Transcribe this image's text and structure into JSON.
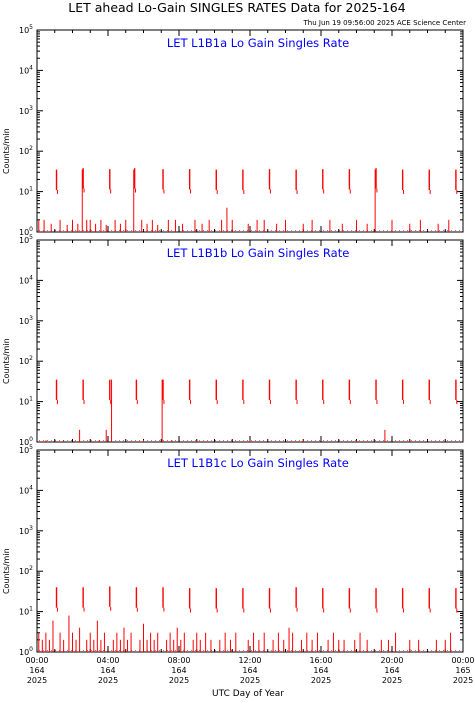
{
  "page": {
    "title": "LET ahead Lo-Gain SINGLES RATES Data for 2025-164",
    "timestamp": "Thu Jun 19 09:56:00 2025 ACE Science Center",
    "xlabel": "UTC Day of Year"
  },
  "colors": {
    "data": "#ff0000",
    "panel_title": "#0000ff",
    "axes": "#000000"
  },
  "x_ticks": [
    {
      "line1": "00:00",
      "line2": "164",
      "line3": "2025",
      "hour": 0
    },
    {
      "line1": "04:00",
      "line2": "164",
      "line3": "2025",
      "hour": 4
    },
    {
      "line1": "08:00",
      "line2": "164",
      "line3": "2025",
      "hour": 8
    },
    {
      "line1": "12:00",
      "line2": "164",
      "line3": "2025",
      "hour": 12
    },
    {
      "line1": "16:00",
      "line2": "164",
      "line3": "2025",
      "hour": 16
    },
    {
      "line1": "20:00",
      "line2": "164",
      "line3": "2025",
      "hour": 20
    },
    {
      "line1": "00:00",
      "line2": "165",
      "line3": "2025",
      "hour": 24
    }
  ],
  "chart_data": [
    {
      "type": "line",
      "title": "LET L1B1a Lo Gain Singles Rate",
      "ylabel": "Counts/min",
      "yscale": "log",
      "xlim_hours": [
        0,
        24
      ],
      "ylim": [
        1,
        100000
      ],
      "y_tick_labels": [
        "10^0",
        "10^1",
        "10^2",
        "10^3",
        "10^4",
        "10^5"
      ],
      "spikes": [
        {
          "t": 1.1,
          "y": 35
        },
        {
          "t": 2.6,
          "y": 38
        },
        {
          "t": 4.1,
          "y": 36
        },
        {
          "t": 5.5,
          "y": 38
        },
        {
          "t": 7.1,
          "y": 36
        },
        {
          "t": 8.6,
          "y": 36
        },
        {
          "t": 10.1,
          "y": 35
        },
        {
          "t": 11.6,
          "y": 35
        },
        {
          "t": 13.1,
          "y": 36
        },
        {
          "t": 14.6,
          "y": 35
        },
        {
          "t": 16.1,
          "y": 36
        },
        {
          "t": 17.6,
          "y": 36
        },
        {
          "t": 19.1,
          "y": 38
        },
        {
          "t": 20.6,
          "y": 35
        },
        {
          "t": 22.1,
          "y": 35
        },
        {
          "t": 23.6,
          "y": 35
        }
      ],
      "drops": [
        2.55,
        5.45,
        19.05
      ],
      "noise": [
        {
          "t": 0.1,
          "y": 2
        },
        {
          "t": 0.4,
          "y": 2
        },
        {
          "t": 0.8,
          "y": 1.6
        },
        {
          "t": 1.3,
          "y": 2
        },
        {
          "t": 1.7,
          "y": 1.5
        },
        {
          "t": 2.0,
          "y": 2
        },
        {
          "t": 2.3,
          "y": 1.6
        },
        {
          "t": 2.8,
          "y": 2
        },
        {
          "t": 3.0,
          "y": 2
        },
        {
          "t": 3.3,
          "y": 1.6
        },
        {
          "t": 3.6,
          "y": 2
        },
        {
          "t": 3.9,
          "y": 1.5
        },
        {
          "t": 4.4,
          "y": 2
        },
        {
          "t": 4.7,
          "y": 1.6
        },
        {
          "t": 5.0,
          "y": 2
        },
        {
          "t": 5.9,
          "y": 2
        },
        {
          "t": 6.2,
          "y": 1.6
        },
        {
          "t": 6.5,
          "y": 2
        },
        {
          "t": 6.8,
          "y": 1.5
        },
        {
          "t": 7.4,
          "y": 2
        },
        {
          "t": 7.8,
          "y": 2
        },
        {
          "t": 8.2,
          "y": 1.6
        },
        {
          "t": 8.9,
          "y": 2
        },
        {
          "t": 9.3,
          "y": 1.6
        },
        {
          "t": 9.7,
          "y": 2
        },
        {
          "t": 10.4,
          "y": 2
        },
        {
          "t": 10.7,
          "y": 4
        },
        {
          "t": 11.0,
          "y": 2
        },
        {
          "t": 11.9,
          "y": 1.6
        },
        {
          "t": 12.4,
          "y": 2
        },
        {
          "t": 12.8,
          "y": 2
        },
        {
          "t": 13.5,
          "y": 1.6
        },
        {
          "t": 14.0,
          "y": 2
        },
        {
          "t": 15.0,
          "y": 1.6
        },
        {
          "t": 15.5,
          "y": 2
        },
        {
          "t": 16.5,
          "y": 2
        },
        {
          "t": 17.2,
          "y": 1.6
        },
        {
          "t": 18.0,
          "y": 2
        },
        {
          "t": 18.6,
          "y": 1.6
        },
        {
          "t": 20.0,
          "y": 2
        },
        {
          "t": 21.0,
          "y": 1.6
        },
        {
          "t": 21.6,
          "y": 2
        },
        {
          "t": 22.6,
          "y": 1.6
        },
        {
          "t": 23.2,
          "y": 2
        }
      ]
    },
    {
      "type": "line",
      "title": "LET L1B1b Lo Gain Singles Rate",
      "ylabel": "Counts/min",
      "yscale": "log",
      "xlim_hours": [
        0,
        24
      ],
      "ylim": [
        1,
        100000
      ],
      "y_tick_labels": [
        "10^0",
        "10^1",
        "10^2",
        "10^3",
        "10^4",
        "10^5"
      ],
      "spikes": [
        {
          "t": 1.1,
          "y": 35
        },
        {
          "t": 2.6,
          "y": 35
        },
        {
          "t": 4.1,
          "y": 35
        },
        {
          "t": 5.6,
          "y": 35
        },
        {
          "t": 7.1,
          "y": 35
        },
        {
          "t": 8.6,
          "y": 35
        },
        {
          "t": 10.1,
          "y": 35
        },
        {
          "t": 11.6,
          "y": 35
        },
        {
          "t": 13.1,
          "y": 35
        },
        {
          "t": 14.6,
          "y": 35
        },
        {
          "t": 16.1,
          "y": 35
        },
        {
          "t": 17.6,
          "y": 35
        },
        {
          "t": 19.1,
          "y": 35
        },
        {
          "t": 20.6,
          "y": 35
        },
        {
          "t": 22.1,
          "y": 35
        },
        {
          "t": 23.6,
          "y": 35
        }
      ],
      "drops": [
        4.2,
        7.05
      ],
      "noise": [
        {
          "t": 0.5,
          "y": 1.1
        },
        {
          "t": 1.5,
          "y": 1.1
        },
        {
          "t": 2.4,
          "y": 2
        },
        {
          "t": 3.5,
          "y": 1.1
        },
        {
          "t": 3.9,
          "y": 2
        },
        {
          "t": 6.0,
          "y": 1.1
        },
        {
          "t": 7.6,
          "y": 1.1
        },
        {
          "t": 9.0,
          "y": 1.1
        },
        {
          "t": 12.0,
          "y": 1.1
        },
        {
          "t": 15.0,
          "y": 1.1
        },
        {
          "t": 18.0,
          "y": 1.1
        },
        {
          "t": 19.6,
          "y": 2
        },
        {
          "t": 21.0,
          "y": 1.1
        }
      ]
    },
    {
      "type": "line",
      "title": "LET L1B1c Lo Gain Singles Rate",
      "ylabel": "Counts/min",
      "yscale": "log",
      "xlim_hours": [
        0,
        24
      ],
      "ylim": [
        1,
        100000
      ],
      "y_tick_labels": [
        "10^0",
        "10^1",
        "10^2",
        "10^3",
        "10^4",
        "10^5"
      ],
      "spikes": [
        {
          "t": 1.1,
          "y": 40
        },
        {
          "t": 2.6,
          "y": 40
        },
        {
          "t": 4.1,
          "y": 42
        },
        {
          "t": 5.6,
          "y": 40
        },
        {
          "t": 7.1,
          "y": 40
        },
        {
          "t": 8.6,
          "y": 38
        },
        {
          "t": 10.1,
          "y": 38
        },
        {
          "t": 11.6,
          "y": 38
        },
        {
          "t": 13.1,
          "y": 38
        },
        {
          "t": 14.6,
          "y": 40
        },
        {
          "t": 16.1,
          "y": 38
        },
        {
          "t": 17.6,
          "y": 38
        },
        {
          "t": 19.1,
          "y": 38
        },
        {
          "t": 20.6,
          "y": 38
        },
        {
          "t": 22.1,
          "y": 38
        },
        {
          "t": 23.6,
          "y": 38
        }
      ],
      "drops": [],
      "noise": [
        {
          "t": 0.1,
          "y": 3
        },
        {
          "t": 0.3,
          "y": 2
        },
        {
          "t": 0.5,
          "y": 3
        },
        {
          "t": 0.7,
          "y": 2
        },
        {
          "t": 0.9,
          "y": 6
        },
        {
          "t": 1.3,
          "y": 3
        },
        {
          "t": 1.5,
          "y": 2
        },
        {
          "t": 1.8,
          "y": 8
        },
        {
          "t": 2.0,
          "y": 3
        },
        {
          "t": 2.2,
          "y": 2
        },
        {
          "t": 2.4,
          "y": 4
        },
        {
          "t": 2.8,
          "y": 2
        },
        {
          "t": 3.0,
          "y": 3
        },
        {
          "t": 3.2,
          "y": 2
        },
        {
          "t": 3.4,
          "y": 6
        },
        {
          "t": 3.6,
          "y": 2
        },
        {
          "t": 3.8,
          "y": 3
        },
        {
          "t": 4.3,
          "y": 2
        },
        {
          "t": 4.5,
          "y": 3
        },
        {
          "t": 4.7,
          "y": 2
        },
        {
          "t": 4.9,
          "y": 4
        },
        {
          "t": 5.1,
          "y": 2
        },
        {
          "t": 5.3,
          "y": 3
        },
        {
          "t": 5.8,
          "y": 2
        },
        {
          "t": 6.0,
          "y": 5
        },
        {
          "t": 6.2,
          "y": 2
        },
        {
          "t": 6.4,
          "y": 3
        },
        {
          "t": 6.6,
          "y": 2
        },
        {
          "t": 6.8,
          "y": 3
        },
        {
          "t": 7.3,
          "y": 2
        },
        {
          "t": 7.5,
          "y": 3
        },
        {
          "t": 7.7,
          "y": 2
        },
        {
          "t": 7.9,
          "y": 4
        },
        {
          "t": 8.1,
          "y": 2
        },
        {
          "t": 8.3,
          "y": 3
        },
        {
          "t": 8.8,
          "y": 2
        },
        {
          "t": 9.0,
          "y": 3
        },
        {
          "t": 9.2,
          "y": 2
        },
        {
          "t": 9.5,
          "y": 3
        },
        {
          "t": 9.8,
          "y": 2
        },
        {
          "t": 10.3,
          "y": 2
        },
        {
          "t": 10.6,
          "y": 3
        },
        {
          "t": 10.9,
          "y": 2
        },
        {
          "t": 11.2,
          "y": 3
        },
        {
          "t": 11.9,
          "y": 2
        },
        {
          "t": 12.2,
          "y": 3
        },
        {
          "t": 12.5,
          "y": 2
        },
        {
          "t": 12.8,
          "y": 3
        },
        {
          "t": 13.3,
          "y": 2
        },
        {
          "t": 13.6,
          "y": 3
        },
        {
          "t": 13.9,
          "y": 2
        },
        {
          "t": 14.2,
          "y": 4
        },
        {
          "t": 14.4,
          "y": 3
        },
        {
          "t": 14.9,
          "y": 2
        },
        {
          "t": 15.2,
          "y": 3
        },
        {
          "t": 15.5,
          "y": 2
        },
        {
          "t": 15.8,
          "y": 3
        },
        {
          "t": 16.4,
          "y": 2
        },
        {
          "t": 16.7,
          "y": 3
        },
        {
          "t": 17.0,
          "y": 2
        },
        {
          "t": 17.3,
          "y": 2
        },
        {
          "t": 17.9,
          "y": 2
        },
        {
          "t": 18.2,
          "y": 3
        },
        {
          "t": 18.6,
          "y": 2
        },
        {
          "t": 19.4,
          "y": 2
        },
        {
          "t": 19.8,
          "y": 2
        },
        {
          "t": 20.2,
          "y": 3
        },
        {
          "t": 21.0,
          "y": 2
        },
        {
          "t": 21.5,
          "y": 2
        },
        {
          "t": 22.5,
          "y": 2
        },
        {
          "t": 23.0,
          "y": 2
        },
        {
          "t": 23.3,
          "y": 3
        }
      ]
    }
  ]
}
